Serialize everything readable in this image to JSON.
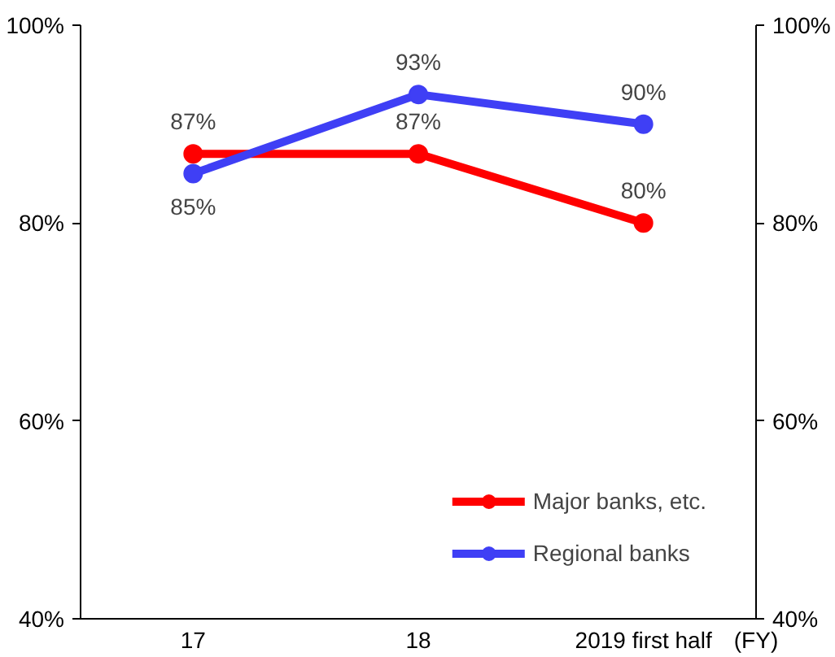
{
  "chart_data": {
    "type": "line",
    "categories": [
      "17",
      "18",
      "2019 first half"
    ],
    "xlabel": "(FY)",
    "ylim": [
      40,
      100
    ],
    "yticks": [
      {
        "value": 40,
        "label": "40%"
      },
      {
        "value": 60,
        "label": "60%"
      },
      {
        "value": 80,
        "label": "80%"
      },
      {
        "value": 100,
        "label": "100%"
      }
    ],
    "y2lim": [
      40,
      100
    ],
    "y2ticks": [
      {
        "value": 40,
        "label": "40%"
      },
      {
        "value": 60,
        "label": "60%"
      },
      {
        "value": 80,
        "label": "80%"
      },
      {
        "value": 100,
        "label": "100%"
      }
    ],
    "series": [
      {
        "name": "Major banks, etc.",
        "color": "#ff0000",
        "values": [
          87,
          87,
          80
        ],
        "value_labels": [
          "87%",
          "87%",
          "80%"
        ]
      },
      {
        "name": "Regional banks",
        "color": "#3f3ff5",
        "values": [
          85,
          93,
          90
        ],
        "value_labels": [
          "85%",
          "93%",
          "90%"
        ]
      }
    ],
    "marker": "circle",
    "line_style": "solid",
    "grid": false,
    "legend": "bottom right"
  }
}
